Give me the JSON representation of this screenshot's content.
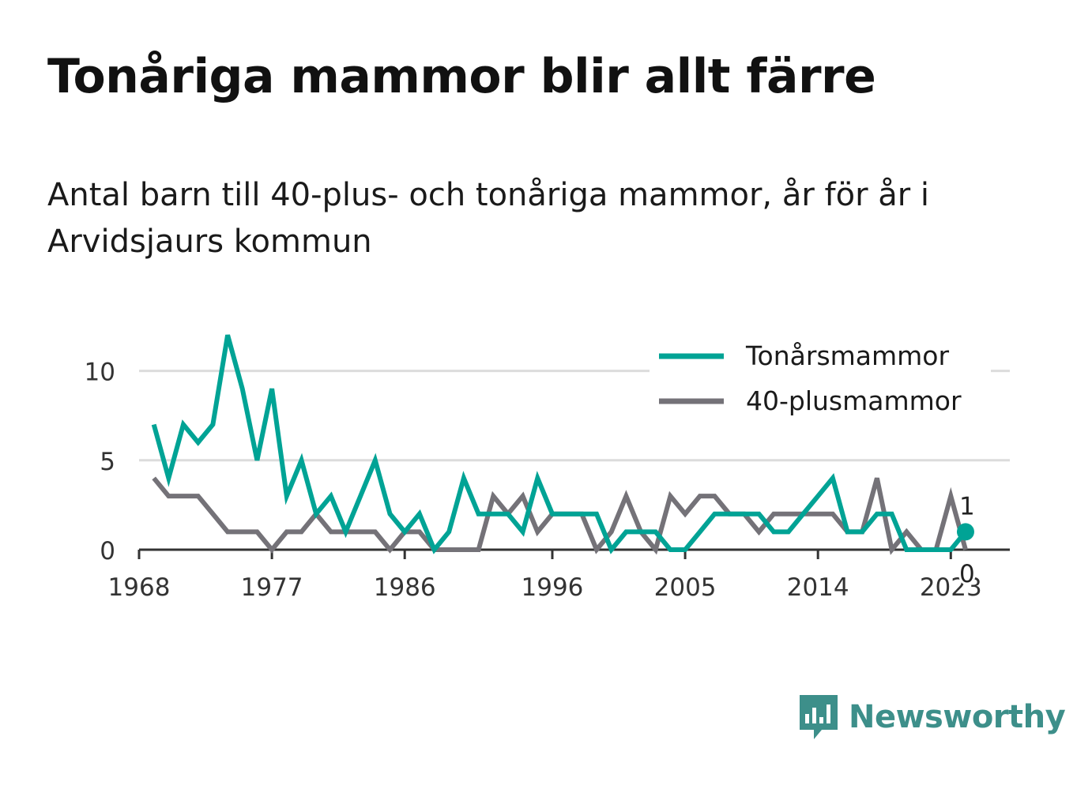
{
  "header": {
    "title": "Tonåriga mammor blir allt färre",
    "subtitle": "Antal barn till 40-plus- och tonåriga mammor, år för år i Arvidsjaurs kommun"
  },
  "brand": {
    "name": "Newsworthy",
    "icon": "newsworthy-logo-icon",
    "color": "#3d8f8a"
  },
  "chart_data": {
    "type": "line",
    "x": [
      1969,
      1970,
      1971,
      1972,
      1973,
      1974,
      1975,
      1976,
      1977,
      1978,
      1979,
      1980,
      1981,
      1982,
      1983,
      1984,
      1985,
      1986,
      1987,
      1988,
      1989,
      1990,
      1991,
      1992,
      1993,
      1994,
      1995,
      1996,
      1997,
      1998,
      1999,
      2000,
      2001,
      2002,
      2003,
      2004,
      2005,
      2006,
      2007,
      2008,
      2009,
      2010,
      2011,
      2012,
      2013,
      2014,
      2015,
      2016,
      2017,
      2018,
      2019,
      2020,
      2021,
      2022,
      2023,
      2024
    ],
    "series": [
      {
        "name": "Tonårsmammor",
        "color": "#00a395",
        "values": [
          7,
          4,
          7,
          6,
          7,
          12,
          9,
          5,
          9,
          3,
          5,
          2,
          3,
          1,
          3,
          5,
          2,
          1,
          2,
          0,
          1,
          4,
          2,
          2,
          2,
          1,
          4,
          2,
          2,
          2,
          2,
          0,
          1,
          1,
          1,
          0,
          0,
          1,
          2,
          2,
          2,
          2,
          1,
          1,
          2,
          3,
          4,
          1,
          1,
          2,
          2,
          0,
          0,
          0,
          0,
          1
        ]
      },
      {
        "name": "40-plusmammor",
        "color": "#747278",
        "values": [
          4,
          3,
          3,
          3,
          2,
          1,
          1,
          1,
          0,
          1,
          1,
          2,
          1,
          1,
          1,
          1,
          0,
          1,
          1,
          0,
          0,
          0,
          0,
          3,
          2,
          3,
          1,
          2,
          2,
          2,
          0,
          1,
          3,
          1,
          0,
          3,
          2,
          3,
          3,
          2,
          2,
          1,
          2,
          2,
          2,
          2,
          2,
          1,
          1,
          4,
          0,
          1,
          0,
          0,
          3,
          0
        ]
      }
    ],
    "xticks": [
      1968,
      1977,
      1986,
      1996,
      2005,
      2014,
      2023
    ],
    "yticks": [
      0,
      5,
      10
    ],
    "xlim": [
      1968,
      2027
    ],
    "ylim": [
      0,
      12.5
    ],
    "grid": true,
    "legend": "top-right",
    "end_labels": [
      "1",
      "0"
    ]
  }
}
